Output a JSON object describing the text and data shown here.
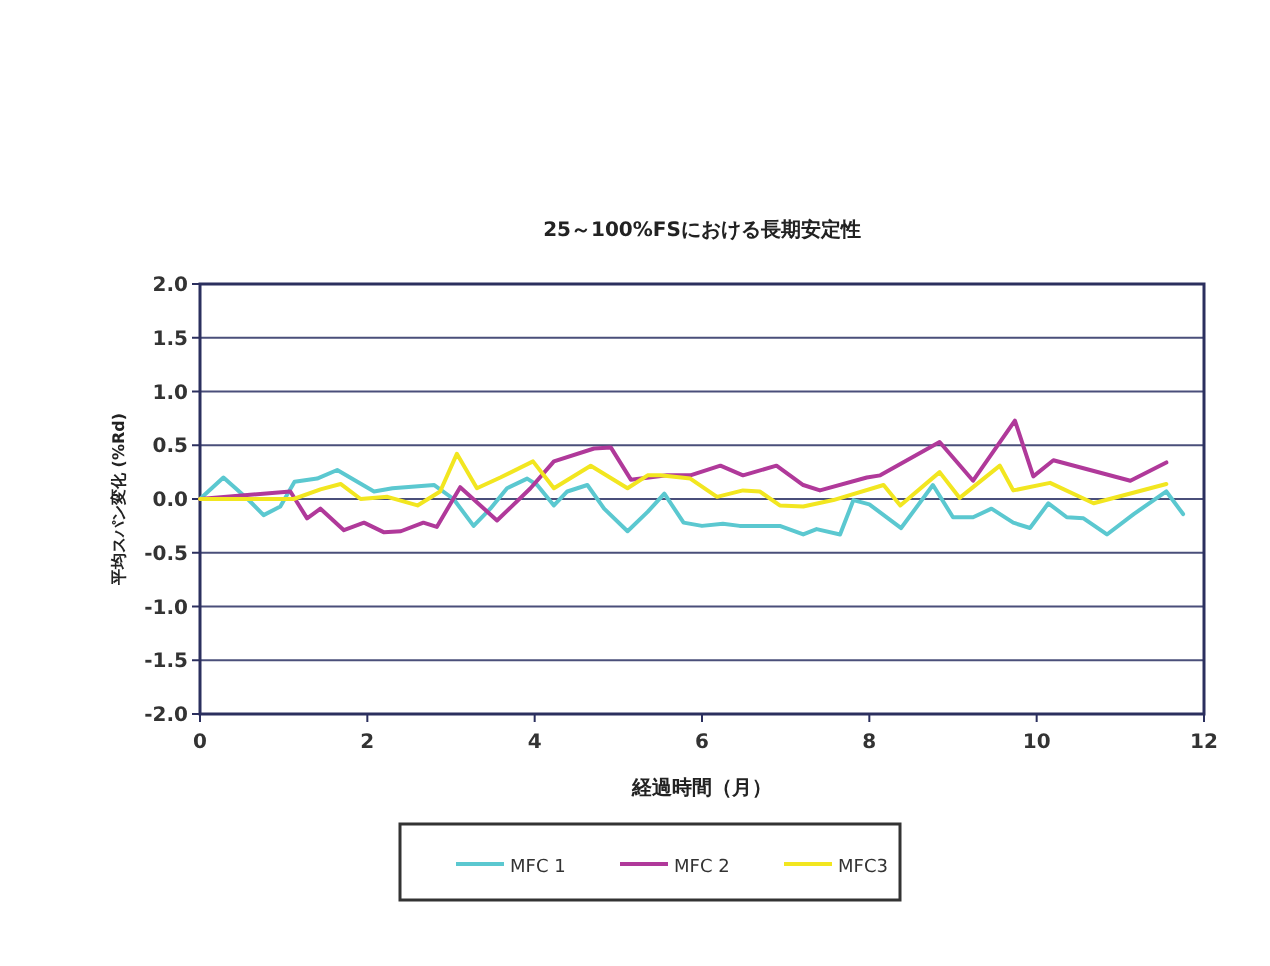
{
  "chart_data": {
    "type": "line",
    "title": "25～100%FSにおける長期安定性",
    "xlabel": "経過時間（月）",
    "ylabel": "平均スパン変化 (%Rd)",
    "xlim": [
      0,
      12
    ],
    "xticks": [
      0,
      2,
      4,
      6,
      8,
      10,
      12
    ],
    "ylim": [
      -2.0,
      2.0
    ],
    "yticks": [
      {
        "value": 2.0,
        "label": "2.0"
      },
      {
        "value": 1.5,
        "label": "1.5"
      },
      {
        "value": 1.0,
        "label": "1.0"
      },
      {
        "value": 0.5,
        "label": "0.5"
      },
      {
        "value": 0.0,
        "label": "0.0"
      },
      {
        "value": -0.5,
        "label": "-0.5"
      },
      {
        "value": -1.0,
        "label": "-1.0"
      },
      {
        "value": -1.5,
        "label": "-1.5"
      },
      {
        "value": -2.0,
        "label": "-2.0"
      }
    ],
    "grid": "y",
    "legend": "bottom",
    "marker": "none",
    "line_style": "solid",
    "series": [
      {
        "name": "MFC 1",
        "color": "#5bc8d0",
        "x": [
          0,
          0.28,
          0.57,
          0.76,
          0.96,
          1.13,
          1.4,
          1.64,
          1.88,
          2.08,
          2.3,
          2.8,
          3.03,
          3.27,
          3.47,
          3.67,
          3.91,
          4.03,
          4.23,
          4.39,
          4.63,
          4.83,
          5.11,
          5.35,
          5.55,
          5.78,
          6.0,
          6.25,
          6.45,
          6.69,
          6.93,
          7.21,
          7.37,
          7.65,
          7.81,
          8.0,
          8.38,
          8.76,
          9.0,
          9.24,
          9.46,
          9.72,
          9.92,
          10.14,
          10.36,
          10.56,
          10.84,
          11.16,
          11.55,
          11.75
        ],
        "values": [
          0,
          0.2,
          0.0,
          -0.15,
          -0.07,
          0.16,
          0.19,
          0.27,
          0.16,
          0.07,
          0.1,
          0.13,
          0.0,
          -0.25,
          -0.09,
          0.1,
          0.19,
          0.13,
          -0.06,
          0.07,
          0.13,
          -0.09,
          -0.3,
          -0.12,
          0.05,
          -0.22,
          -0.25,
          -0.23,
          -0.25,
          -0.25,
          -0.25,
          -0.33,
          -0.28,
          -0.33,
          -0.01,
          -0.05,
          -0.27,
          0.13,
          -0.17,
          -0.17,
          -0.09,
          -0.22,
          -0.27,
          -0.04,
          -0.17,
          -0.18,
          -0.33,
          -0.14,
          0.07,
          -0.14
        ]
      },
      {
        "name": "MFC 2",
        "color": "#b0399a",
        "x": [
          0,
          1.08,
          1.28,
          1.44,
          1.72,
          1.96,
          2.2,
          2.4,
          2.67,
          2.83,
          3.11,
          3.55,
          3.95,
          4.23,
          4.71,
          4.91,
          5.15,
          5.58,
          5.86,
          6.22,
          6.49,
          6.89,
          7.21,
          7.41,
          7.97,
          8.13,
          8.84,
          9.24,
          9.74,
          9.96,
          10.2,
          11.12,
          11.55
        ],
        "values": [
          0,
          0.07,
          -0.18,
          -0.09,
          -0.29,
          -0.22,
          -0.31,
          -0.3,
          -0.22,
          -0.26,
          0.11,
          -0.2,
          0.1,
          0.35,
          0.47,
          0.48,
          0.18,
          0.22,
          0.22,
          0.31,
          0.22,
          0.31,
          0.13,
          0.08,
          0.2,
          0.22,
          0.53,
          0.17,
          0.73,
          0.21,
          0.36,
          0.17,
          0.34
        ]
      },
      {
        "name": "MFC3",
        "color": "#f2e620",
        "x": [
          0,
          1.12,
          1.44,
          1.68,
          1.92,
          2.24,
          2.6,
          2.87,
          3.07,
          3.31,
          3.59,
          3.98,
          4.23,
          4.67,
          5.11,
          5.35,
          5.5,
          5.86,
          6.18,
          6.49,
          6.69,
          6.93,
          7.21,
          7.57,
          8.17,
          8.37,
          8.84,
          9.08,
          9.56,
          9.72,
          10.16,
          10.68,
          11.55
        ],
        "values": [
          0,
          0,
          0.09,
          0.14,
          0,
          0.02,
          -0.06,
          0.07,
          0.42,
          0.1,
          0.2,
          0.35,
          0.1,
          0.31,
          0.1,
          0.22,
          0.22,
          0.19,
          0.02,
          0.08,
          0.07,
          -0.06,
          -0.07,
          -0.01,
          0.13,
          -0.06,
          0.25,
          0.01,
          0.31,
          0.08,
          0.15,
          -0.04,
          0.14
        ]
      }
    ]
  }
}
